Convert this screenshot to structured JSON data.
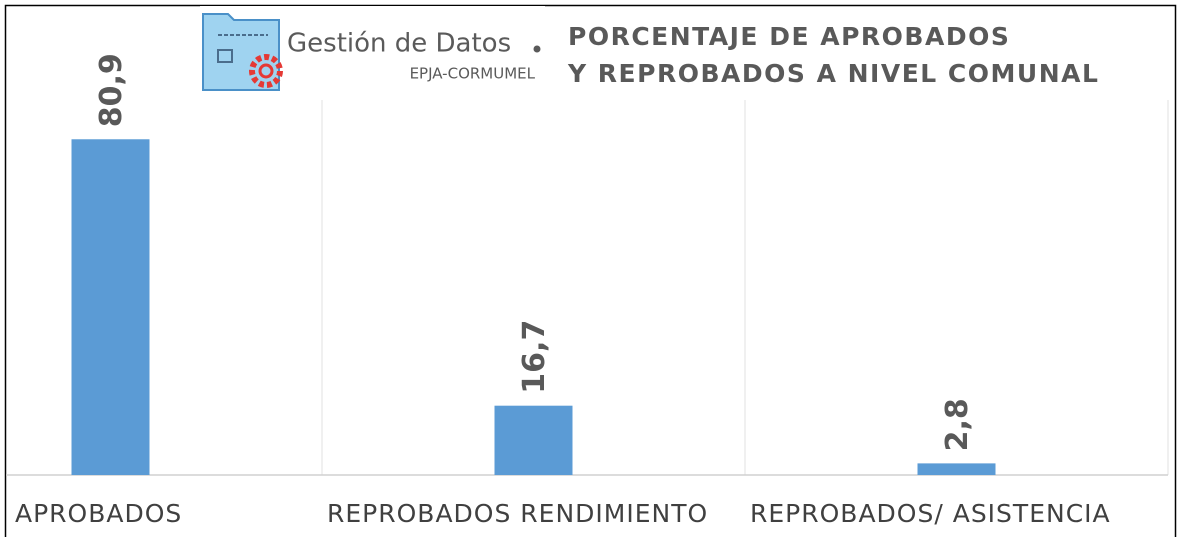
{
  "chart_data": {
    "type": "bar",
    "title": [
      "PORCENTAJE DE APROBADOS",
      "Y REPROBADOS A NIVEL COMUNAL"
    ],
    "logo": {
      "name": "Gestión de Datos",
      "org": "EPJA-CORMUMEL"
    },
    "categories": [
      "APROBADOS",
      "REPROBADOS RENDIMIENTO",
      "REPROBADOS/ ASISTENCIA"
    ],
    "values": [
      80.9,
      16.7,
      2.8
    ],
    "value_labels": [
      "80,9",
      "16,7",
      "2,8"
    ],
    "color": "#5b9bd5",
    "ylim": [
      0,
      100
    ]
  }
}
